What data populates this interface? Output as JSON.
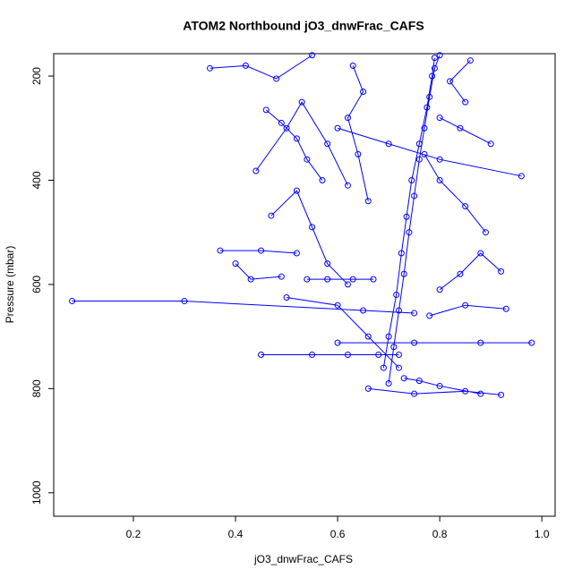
{
  "chart_data": {
    "type": "line",
    "title": "ATOM2 Northbound jO3_dnwFrac_CAFS",
    "x_label": "jO3_dnwFrac_CAFS",
    "y_label": "Pressure (mbar)",
    "color": "#0000ff",
    "markers": true,
    "y_inverted": true,
    "xlim": [
      0.044,
      1.026
    ],
    "ylim": [
      157,
      1045
    ],
    "xticks": [
      0.2,
      0.4,
      0.6,
      0.8,
      {
        "value": 1,
        "label": "1.0"
      }
    ],
    "yticks": [
      200,
      400,
      600,
      800,
      1000
    ],
    "x": [
      0.7,
      0.71,
      0.72,
      0.73,
      0.74,
      0.75,
      0.76,
      0.77,
      0.78,
      0.79,
      0.8,
      null,
      0.69,
      0.7,
      0.715,
      0.725,
      0.735,
      0.745,
      0.76,
      0.775,
      0.785,
      0.79,
      null,
      0.45,
      0.55,
      0.62,
      0.68,
      0.72,
      null,
      0.08,
      0.3,
      0.65,
      0.75,
      null,
      0.6,
      0.75,
      0.88,
      0.98,
      null,
      0.37,
      0.45,
      0.52,
      null,
      0.35,
      0.42,
      0.48,
      0.55,
      null,
      0.44,
      0.5,
      0.53,
      0.58,
      0.62,
      null,
      0.47,
      0.52,
      0.55,
      0.58,
      0.62,
      null,
      0.96,
      0.8,
      0.7,
      0.6,
      null,
      0.89,
      0.85,
      0.8,
      0.77,
      null,
      0.92,
      0.88,
      0.84,
      0.8,
      null,
      0.93,
      0.85,
      0.78,
      null,
      0.66,
      0.75,
      0.85,
      0.92,
      null,
      0.73,
      0.76,
      0.8,
      0.88,
      null,
      0.54,
      0.58,
      0.63,
      0.67,
      null,
      0.5,
      0.6,
      0.66,
      0.72,
      null,
      0.4,
      0.43,
      0.49,
      null,
      0.46,
      0.49,
      0.52,
      0.54,
      0.57,
      null,
      0.63,
      0.65,
      0.62,
      0.64,
      0.66,
      null,
      0.85,
      0.82,
      0.86,
      null,
      0.9,
      0.84,
      0.8
    ],
    "values": [
      790,
      720,
      650,
      580,
      500,
      430,
      360,
      300,
      240,
      185,
      160,
      null,
      760,
      700,
      620,
      540,
      470,
      400,
      330,
      260,
      200,
      165,
      null,
      735,
      735,
      735,
      735,
      735,
      null,
      632,
      632,
      650,
      655,
      null,
      712,
      712,
      712,
      712,
      null,
      535,
      535,
      540,
      null,
      185,
      180,
      205,
      160,
      null,
      382,
      300,
      250,
      330,
      410,
      null,
      468,
      420,
      490,
      560,
      600,
      null,
      392,
      360,
      330,
      300,
      null,
      500,
      450,
      400,
      350,
      null,
      575,
      540,
      580,
      610,
      null,
      647,
      640,
      660,
      null,
      800,
      810,
      805,
      812,
      null,
      780,
      785,
      795,
      810,
      null,
      590,
      590,
      590,
      590,
      null,
      625,
      640,
      700,
      760,
      null,
      560,
      590,
      585,
      null,
      265,
      290,
      320,
      360,
      400,
      null,
      180,
      230,
      280,
      350,
      440,
      null,
      250,
      210,
      170,
      null,
      330,
      300,
      280
    ]
  }
}
